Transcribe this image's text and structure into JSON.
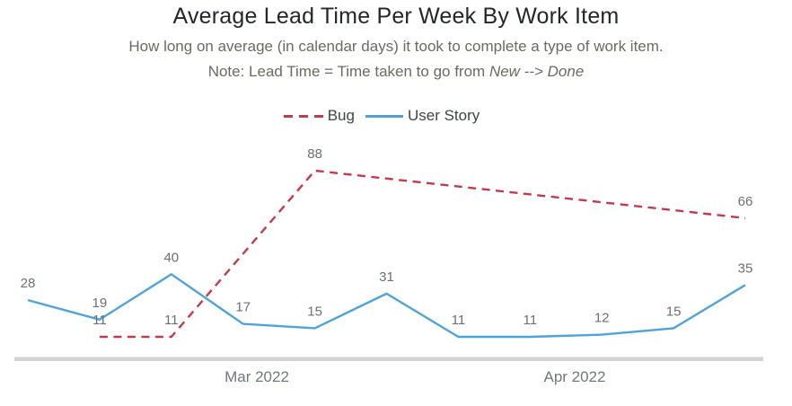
{
  "chart_data": {
    "type": "line",
    "title": "Average Lead Time Per Week By Work Item",
    "subtitle": "How long on average (in calendar days) it took to complete a type of work item.",
    "note": {
      "prefix": "Note: Lead Time = Time taken to go from ",
      "italic": "New --> Done"
    },
    "legend_position": "top",
    "grid": "off",
    "x_axis": {
      "labels": [
        "Mar 2022",
        "Apr 2022"
      ]
    },
    "weeks_count": 11,
    "ylim": [
      0,
      105
    ],
    "series": [
      {
        "name": "Bug",
        "color": "#c23b4b",
        "dashed": true,
        "points": [
          {
            "week": 1,
            "value": 11
          },
          {
            "week": 2,
            "value": 11
          },
          {
            "week": 4,
            "value": 88
          },
          {
            "week": 10,
            "value": 66
          }
        ]
      },
      {
        "name": "User Story",
        "color": "#4fa3d8",
        "dashed": false,
        "points": [
          {
            "week": 0,
            "value": 28
          },
          {
            "week": 1,
            "value": 19
          },
          {
            "week": 2,
            "value": 40
          },
          {
            "week": 3,
            "value": 17
          },
          {
            "week": 4,
            "value": 15
          },
          {
            "week": 5,
            "value": 31
          },
          {
            "week": 6,
            "value": 11
          },
          {
            "week": 7,
            "value": 11
          },
          {
            "week": 8,
            "value": 12
          },
          {
            "week": 9,
            "value": 15
          },
          {
            "week": 10,
            "value": 35
          }
        ]
      }
    ],
    "value_label_color": "#6b7076",
    "axis_label_color": "#73777d",
    "axis_line_color": "#d2d2d2"
  }
}
